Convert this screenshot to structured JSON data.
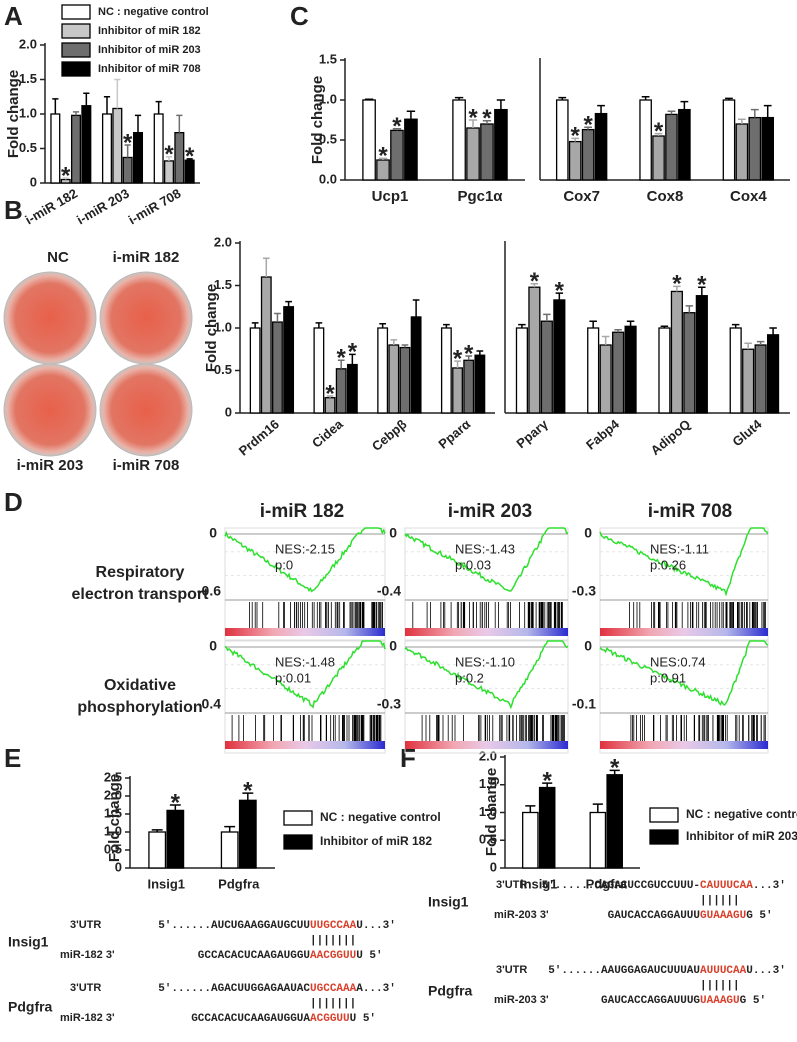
{
  "panel_labels": [
    "A",
    "B",
    "C",
    "D",
    "E",
    "F"
  ],
  "dishes": [
    "NC",
    "i-miR 182",
    "i-miR 203",
    "i-miR 708"
  ],
  "chart_data": [
    {
      "type": "bar",
      "ylabel": "Fold change",
      "categories": [
        "i-miR 182",
        "i-miR 203",
        "i-miR 708"
      ],
      "ylim": [
        0,
        2
      ],
      "yticks": [
        0,
        0.5,
        {
          "value": 1,
          "label": "1.0"
        },
        1.5,
        {
          "value": 2,
          "label": "2.0"
        }
      ],
      "legend": "top",
      "series": [
        {
          "name": "NC : negative control",
          "color": "#ffffff",
          "values": [
            1,
            1,
            1
          ],
          "errors": [
            0.22,
            0.25,
            0.18
          ],
          "significance": [
            null,
            null,
            null
          ]
        },
        {
          "name": "Inhibitor of miR 182",
          "color": "#c8c8c8",
          "values": [
            0.05,
            1.08,
            0.32
          ],
          "errors": [
            0.02,
            0.42,
            0.06
          ],
          "significance": [
            "*",
            null,
            "*"
          ]
        },
        {
          "name": "Inhibitor of miR 203",
          "color": "#6e6e6e",
          "values": [
            0.98,
            0.37,
            0.73
          ],
          "errors": [
            0.05,
            0.18,
            0.25
          ],
          "significance": [
            null,
            "*",
            null
          ]
        },
        {
          "name": "Inhibitor of miR 708",
          "color": "#000000",
          "values": [
            1.12,
            0.73,
            0.33
          ],
          "errors": [
            0.18,
            0.25,
            0.02
          ],
          "significance": [
            null,
            null,
            "*"
          ]
        }
      ]
    },
    {
      "type": "bar",
      "ylabel": "Fold change",
      "categories": [
        "Ucp1",
        "Pgc1α"
      ],
      "ylim": [
        0,
        1.5
      ],
      "yticks": [
        {
          "value": 0,
          "label": "0.0"
        },
        0.5,
        {
          "value": 1,
          "label": "1.0"
        },
        1.5
      ],
      "series": [
        {
          "color": "#ffffff",
          "values": [
            1,
            1
          ],
          "errors": [
            0.01,
            0.03
          ],
          "significance": [
            null,
            null
          ]
        },
        {
          "color": "#a8a8a8",
          "values": [
            0.25,
            0.65
          ],
          "errors": [
            0.02,
            0.1
          ],
          "significance": [
            "*",
            "*"
          ]
        },
        {
          "color": "#6e6e6e",
          "values": [
            0.62,
            0.7
          ],
          "errors": [
            0.02,
            0.04
          ],
          "significance": [
            "*",
            "*"
          ]
        },
        {
          "color": "#000000",
          "values": [
            0.76,
            0.88
          ],
          "errors": [
            0.1,
            0.12
          ],
          "significance": [
            null,
            null
          ]
        }
      ]
    },
    {
      "type": "bar",
      "categories": [
        "Cox7",
        "Cox8",
        "Cox4"
      ],
      "ylim": [
        0,
        1.5
      ],
      "series": [
        {
          "color": "#ffffff",
          "values": [
            1,
            1,
            1
          ],
          "errors": [
            0.03,
            0.04,
            0.02
          ],
          "significance": [
            null,
            null,
            null
          ]
        },
        {
          "color": "#a8a8a8",
          "values": [
            0.48,
            0.55,
            0.7
          ],
          "errors": [
            0.04,
            0.03,
            0.06
          ],
          "significance": [
            "*",
            "*",
            null
          ]
        },
        {
          "color": "#6e6e6e",
          "values": [
            0.63,
            0.82,
            0.78
          ],
          "errors": [
            0.03,
            0.04,
            0.1
          ],
          "significance": [
            "*",
            null,
            null
          ]
        },
        {
          "color": "#000000",
          "values": [
            0.83,
            0.88,
            0.78
          ],
          "errors": [
            0.1,
            0.1,
            0.15
          ],
          "significance": [
            null,
            null,
            null
          ]
        }
      ]
    },
    {
      "type": "bar",
      "ylabel": "Fold change",
      "categories": [
        "Prdm16",
        "Cidea",
        "Cebpβ",
        "Pparα"
      ],
      "ylim": [
        0,
        2
      ],
      "yticks": [
        0,
        0.5,
        {
          "value": 1,
          "label": "1.0"
        },
        1.5,
        {
          "value": 2,
          "label": "2.0"
        }
      ],
      "series": [
        {
          "color": "#ffffff",
          "values": [
            1,
            1,
            1,
            1
          ],
          "errors": [
            0.06,
            0.06,
            0.05,
            0.04
          ],
          "significance": [
            null,
            null,
            null,
            null
          ]
        },
        {
          "color": "#a8a8a8",
          "values": [
            1.6,
            0.18,
            0.8,
            0.53
          ],
          "errors": [
            0.22,
            0.02,
            0.06,
            0.08
          ],
          "significance": [
            null,
            "*",
            null,
            "*"
          ]
        },
        {
          "color": "#6e6e6e",
          "values": [
            1.07,
            0.52,
            0.77,
            0.62
          ],
          "errors": [
            0.1,
            0.1,
            0.03,
            0.05
          ],
          "significance": [
            null,
            "*",
            null,
            "*"
          ]
        },
        {
          "color": "#000000",
          "values": [
            1.25,
            0.57,
            1.13,
            0.68
          ],
          "errors": [
            0.06,
            0.12,
            0.2,
            0.05
          ],
          "significance": [
            null,
            "*",
            null,
            null
          ]
        }
      ]
    },
    {
      "type": "bar",
      "categories": [
        "Pparγ",
        "Fabp4",
        "AdipoQ",
        "Glut4"
      ],
      "ylim": [
        0,
        2
      ],
      "series": [
        {
          "color": "#ffffff",
          "values": [
            1,
            1,
            1,
            1
          ],
          "errors": [
            0.04,
            0.08,
            0.02,
            0.04
          ],
          "significance": [
            null,
            null,
            null,
            null
          ]
        },
        {
          "color": "#a8a8a8",
          "values": [
            1.48,
            0.8,
            1.43,
            0.75
          ],
          "errors": [
            0.04,
            0.1,
            0.06,
            0.07
          ],
          "significance": [
            "*",
            null,
            "*",
            null
          ]
        },
        {
          "color": "#6e6e6e",
          "values": [
            1.08,
            0.95,
            1.18,
            0.8
          ],
          "errors": [
            0.08,
            0.03,
            0.08,
            0.04
          ],
          "significance": [
            null,
            null,
            null,
            null
          ]
        },
        {
          "color": "#000000",
          "values": [
            1.33,
            1.02,
            1.38,
            0.92
          ],
          "errors": [
            0.08,
            0.06,
            0.1,
            0.08
          ],
          "significance": [
            "*",
            null,
            "*",
            null
          ]
        }
      ]
    },
    {
      "type": "bar",
      "ylabel": "Fold change",
      "categories": [
        "Insig1",
        "Pdgfra"
      ],
      "legend": "right",
      "ylim": [
        0,
        2.5
      ],
      "yticks": [
        0,
        0.5,
        {
          "value": 1,
          "label": "1.0"
        },
        1.5,
        {
          "value": 2,
          "label": "2.0"
        },
        2.5
      ],
      "series": [
        {
          "name": "NC : negative control",
          "color": "#ffffff",
          "values": [
            1,
            1
          ],
          "errors": [
            0.06,
            0.15
          ],
          "significance": [
            null,
            null
          ]
        },
        {
          "name": "Inhibitor of miR 182",
          "color": "#000000",
          "values": [
            1.6,
            1.88
          ],
          "errors": [
            0.15,
            0.2
          ],
          "significance": [
            "*",
            "*"
          ]
        }
      ]
    },
    {
      "type": "bar",
      "ylabel": "Fold change",
      "categories": [
        "Insig1",
        "Pdgfra"
      ],
      "legend": "right",
      "ylim": [
        0,
        2
      ],
      "yticks": [
        0,
        0.5,
        {
          "value": 1,
          "label": "1.0"
        },
        1.5,
        {
          "value": 2,
          "label": "2.0"
        }
      ],
      "series": [
        {
          "name": "NC : negative control",
          "color": "#ffffff",
          "values": [
            1,
            1
          ],
          "errors": [
            0.12,
            0.15
          ],
          "significance": [
            null,
            null
          ]
        },
        {
          "name": "Inhibitor of miR 203",
          "color": "#000000",
          "values": [
            1.45,
            1.68
          ],
          "errors": [
            0.08,
            0.08
          ],
          "significance": [
            "*",
            "*"
          ]
        }
      ]
    }
  ],
  "gsea": {
    "columns": [
      "i-miR 182",
      "i-miR 203",
      "i-miR 708"
    ],
    "rows": [
      {
        "label": [
          "Respiratory",
          "electron transport"
        ],
        "plots": [
          {
            "top": "0",
            "bottom": "-0.6",
            "nes": "NES:-2.15",
            "p": "p:0"
          },
          {
            "top": "0",
            "bottom": "-0.4",
            "nes": "NES:-1.43",
            "p": "p:0.03"
          },
          {
            "top": "0",
            "bottom": "-0.3",
            "nes": "NES:-1.11",
            "p": "p:0.26"
          }
        ]
      },
      {
        "label": [
          "Oxidative",
          "phosphorylation"
        ],
        "plots": [
          {
            "top": "0",
            "bottom": "-0.4",
            "nes": "NES:-1.48",
            "p": "p:0.01"
          },
          {
            "top": "0",
            "bottom": "-0.3",
            "nes": "NES:-1.10",
            "p": "p:0.2"
          },
          {
            "top": "0",
            "bottom": "-0.1",
            "nes": "NES:0.74",
            "p": "p:0.91"
          }
        ]
      }
    ]
  },
  "sequences": [
    [
      {
        "gene": "Insig1",
        "utr": {
          "label": "3'UTR",
          "prefix": "5'......AUCUGAAGGAUGCUU",
          "seed": "UUGCCAA",
          "suffix": "U...3'"
        },
        "pairing": "|||||||",
        "mir": {
          "label": "miR-182 3'",
          "prefix": "GCCACACUCAAGAUGGU",
          "seed": "AACGGUU",
          "suffix": "U   5'"
        }
      },
      {
        "gene": "Pdgfra",
        "utr": {
          "label": "3'UTR",
          "prefix": "5'......AGACUUGGAGAAUAC",
          "seed": "UGCCAAA",
          "suffix": "A...3'"
        },
        "pairing": "|||||||",
        "mir": {
          "label": "miR-182 3'",
          "prefix": "GCCACACUCAAGAUGGUA",
          "seed": "ACGGUU",
          "suffix": "U   5'"
        }
      }
    ],
    [
      {
        "gene": "Insig1",
        "utr": {
          "label": "3'UTR",
          "prefix": "5'......CAGACUCCGUCCUUU-",
          "seed": "CAUUUCAA",
          "suffix": "...3'"
        },
        "pairing": "||||||",
        "mir": {
          "label": "miR-203 3'",
          "prefix": "GAUCACCAGGAUUU",
          "seed": "GUAAAGU",
          "suffix": "G   5'"
        }
      },
      {
        "gene": "Pdgfra",
        "utr": {
          "label": "3'UTR",
          "prefix": "5'......AAUGGAGAUCUUUAU",
          "seed": "AUUUCAA",
          "suffix": "U...3'"
        },
        "pairing": "||||||",
        "mir": {
          "label": "miR-203 3'",
          "prefix": "GAUCACCAGGAUUUG",
          "seed": "UAAAGU",
          "suffix": "G   5'"
        }
      }
    ]
  ]
}
